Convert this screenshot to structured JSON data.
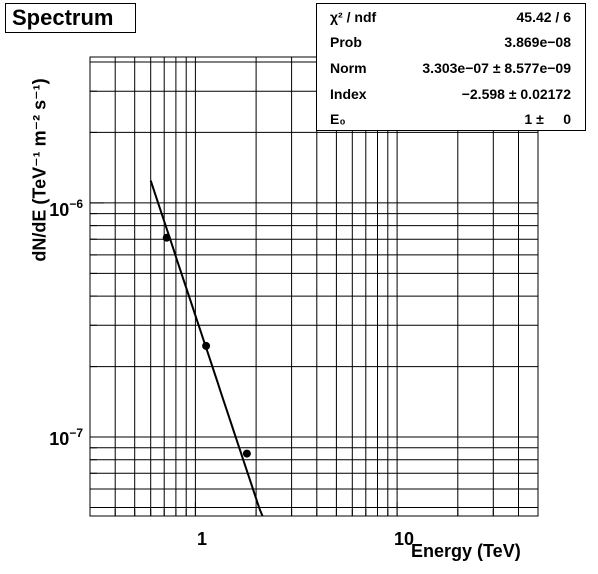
{
  "title": "Spectrum",
  "stats": {
    "rows": [
      {
        "name": "χ² / ndf",
        "value": "45.42 / 6"
      },
      {
        "name": "Prob",
        "value": "3.869e−08"
      },
      {
        "name": "Norm",
        "value": "3.303e−07 ± 8.577e−09"
      },
      {
        "name": "Index",
        "value": "−2.598 ± 0.02172"
      },
      {
        "name": "E₀",
        "value": "1 ±     0"
      }
    ]
  },
  "chart_data": {
    "type": "scatter",
    "title": "Spectrum",
    "xlabel": "Energy (TeV)",
    "ylabel": "dN/dE (TeV⁻¹ m⁻² s⁻¹)",
    "xscale": "log",
    "yscale": "log",
    "xlim": [
      0.3,
      50
    ],
    "ylim": [
      4.6e-08,
      4.2e-06
    ],
    "grid": true,
    "x_ticks": [
      "1",
      "10"
    ],
    "y_ticks": [
      "10⁻⁶",
      "10⁻⁷"
    ],
    "points": [
      {
        "x": 0.72,
        "y": 7.1e-07
      },
      {
        "x": 1.13,
        "y": 2.45e-07
      },
      {
        "x": 1.8,
        "y": 8.5e-08
      }
    ],
    "fit": {
      "function": "power-law",
      "norm": 3.303e-07,
      "index": -2.598,
      "e0": 1,
      "xrange": [
        0.6,
        2.15
      ]
    }
  }
}
